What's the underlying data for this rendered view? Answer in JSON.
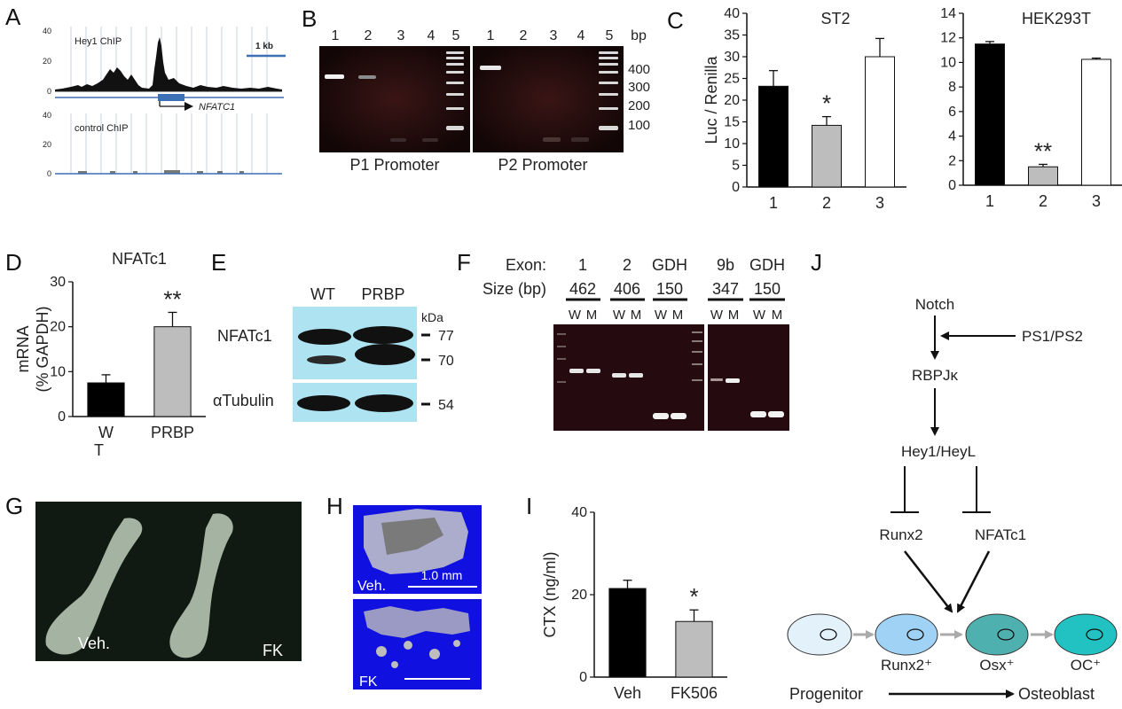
{
  "panels": {
    "A": {
      "label": "A",
      "top_track": "Hey1 ChIP",
      "bottom_track": "control ChIP",
      "scale_bar": "1 kb",
      "gene": "NFATC1",
      "axis_ticks": [
        "40",
        "20",
        "0"
      ],
      "colors": {
        "track_fill": "#111111",
        "gene_line": "#3b6fb6",
        "grid": "#c9d3e2"
      }
    },
    "B": {
      "label": "B",
      "lanes_left": [
        "1",
        "2",
        "3",
        "4",
        "5"
      ],
      "lanes_right": [
        "1",
        "2",
        "3",
        "4",
        "5"
      ],
      "unit": "bp",
      "markers": [
        "400",
        "300",
        "200",
        "100"
      ],
      "left_caption": "P1 Promoter",
      "right_caption": "P2 Promoter"
    },
    "D": {
      "label": "D"
    },
    "E": {
      "label": "E",
      "columns": [
        "WT",
        "PRBP"
      ],
      "rows": [
        "NFATc1",
        "αTubulin"
      ],
      "unit": "kDa",
      "markers": [
        "77",
        "70",
        "54"
      ],
      "colors": {
        "blot_bg": "#aee3f2"
      }
    },
    "F": {
      "label": "F",
      "row_labels": [
        "Exon:",
        "Size (bp)"
      ],
      "exons": [
        "1",
        "2",
        "GDH",
        "9b",
        "GDH"
      ],
      "sizes": [
        "462",
        "406",
        "150",
        "347",
        "150"
      ],
      "lane_labels": [
        "W",
        "M",
        "W",
        "M",
        "W",
        "M",
        "W",
        "M",
        "W",
        "M"
      ]
    },
    "G": {
      "label": "G",
      "left": "Veh.",
      "right": "FK"
    },
    "H": {
      "label": "H",
      "top": "Veh.",
      "scale": "1.0 mm",
      "bottom": "FK",
      "colors": {
        "bg": "#1010e0"
      }
    },
    "I": {
      "label": "I"
    },
    "J": {
      "label": "J",
      "nodes": {
        "notch": "Notch",
        "ps": "PS1/PS2",
        "rbpj": "RBPJκ",
        "hey": "Hey1/HeyL",
        "runx2": "Runx2",
        "nfatc1": "NFATc1"
      },
      "cells": [
        "Runx2⁺",
        "Osx⁺",
        "OC⁺"
      ],
      "progenitor": "Progenitor",
      "osteoblast": "Osteoblast",
      "colors": {
        "cell1": "#e3f1fb",
        "cell2": "#9fd2f4",
        "cell3": "#4fb0b0",
        "cell4": "#22c2c2"
      }
    }
  },
  "chart_data": [
    {
      "id": "C-ST2",
      "panel_label": "C",
      "type": "bar",
      "title": "ST2",
      "ylabel": "Luc / Renilla",
      "ylim": [
        0,
        40
      ],
      "yticks": [
        "0",
        "5",
        "10",
        "15",
        "20",
        "25",
        "30",
        "35",
        "40"
      ],
      "categories": [
        "1",
        "2",
        "3"
      ],
      "values": [
        23.2,
        14.2,
        30
      ],
      "errors": [
        3.6,
        2,
        4.2
      ],
      "colors": [
        "#000000",
        "#bdbdbd",
        "#ffffff"
      ],
      "annotations": [
        "",
        "*",
        ""
      ]
    },
    {
      "id": "C-HEK",
      "type": "bar",
      "title": "HEK293T",
      "ylim": [
        0,
        14
      ],
      "yticks": [
        "0",
        "2",
        "4",
        "6",
        "8",
        "10",
        "12",
        "14"
      ],
      "categories": [
        "1",
        "2",
        "3"
      ],
      "values": [
        11.5,
        1.5,
        10.25
      ],
      "errors": [
        0.2,
        0.2,
        0.1
      ],
      "colors": [
        "#000000",
        "#bdbdbd",
        "#ffffff"
      ],
      "annotations": [
        "",
        "**",
        ""
      ]
    },
    {
      "id": "D",
      "type": "bar",
      "title": "NFATc1",
      "ylabel": "mRNA\n(% GAPDH)",
      "ylim": [
        0,
        30
      ],
      "yticks": [
        "0",
        "10",
        "20",
        "30"
      ],
      "categories": [
        "W\nT",
        "PRBP"
      ],
      "values": [
        7.5,
        20
      ],
      "errors": [
        1.8,
        3.2
      ],
      "colors": [
        "#000000",
        "#bdbdbd"
      ],
      "annotations": [
        "",
        "**"
      ]
    },
    {
      "id": "I",
      "type": "bar",
      "ylabel": "CTX (ng/ml)",
      "ylim": [
        0,
        40
      ],
      "yticks": [
        "0",
        "20",
        "40"
      ],
      "categories": [
        "Veh",
        "FK506"
      ],
      "values": [
        21.5,
        13.5
      ],
      "errors": [
        2,
        2.8
      ],
      "colors": [
        "#000000",
        "#bdbdbd"
      ],
      "annotations": [
        "",
        "*"
      ]
    }
  ]
}
